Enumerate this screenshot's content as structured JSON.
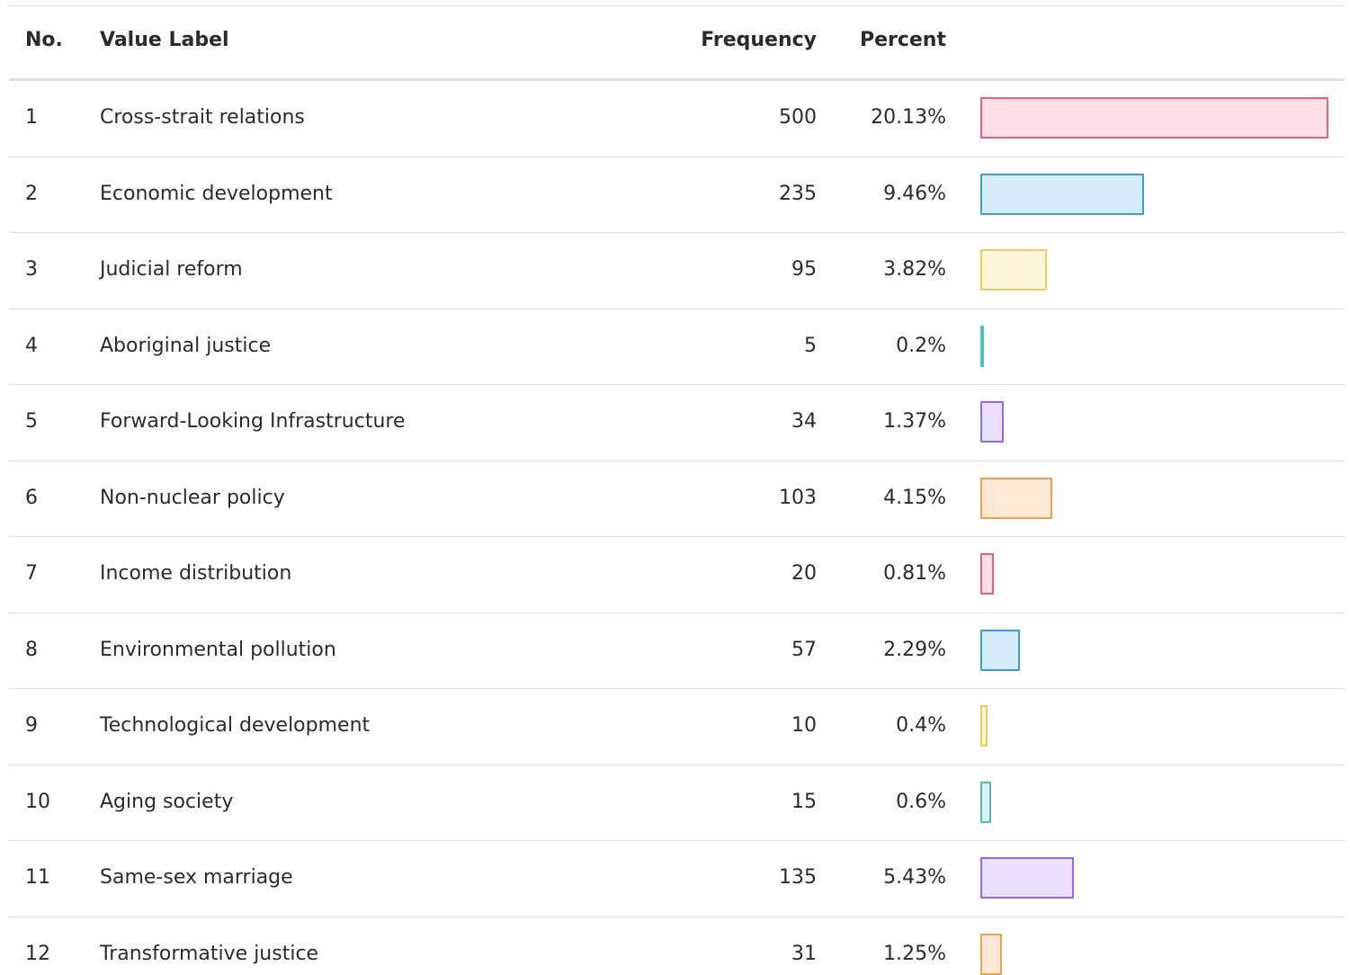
{
  "table": {
    "headers": [
      "No.",
      "Value Label",
      "Frequency",
      "Percent"
    ],
    "rows": [
      [
        1,
        "Cross-strait relations",
        500,
        "20.13%"
      ],
      [
        2,
        "Economic development",
        235,
        "9.46%"
      ],
      [
        3,
        "Judicial reform",
        95,
        "3.82%"
      ],
      [
        4,
        "Aboriginal justice",
        5,
        "0.2%"
      ],
      [
        5,
        "Forward-Looking Infrastructure",
        34,
        "1.37%"
      ],
      [
        6,
        "Non-nuclear policy",
        103,
        "4.15%"
      ],
      [
        7,
        "Income distribution",
        20,
        "0.81%"
      ],
      [
        8,
        "Environmental pollution",
        57,
        "2.29%"
      ],
      [
        9,
        "Technological development",
        10,
        "0.4%"
      ],
      [
        10,
        "Aging society",
        15,
        "0.6%"
      ],
      [
        11,
        "Same-sex marriage",
        135,
        "5.43%"
      ],
      [
        12,
        "Transformative justice",
        31,
        "1.25%"
      ]
    ],
    "bar_colors": [
      {
        "stroke": "#e8607f",
        "fill": "#fde0e6"
      },
      {
        "stroke": "#3a9fd8",
        "fill": "#d6ebf9"
      },
      {
        "stroke": "#f5cc5a",
        "fill": "#fff4dc"
      },
      {
        "stroke": "#4bbfbf",
        "fill": "#dbf2f2"
      },
      {
        "stroke": "#9966ee",
        "fill": "#ebe0fd"
      },
      {
        "stroke": "#f5a050",
        "fill": "#ffe8d6"
      }
    ]
  }
}
